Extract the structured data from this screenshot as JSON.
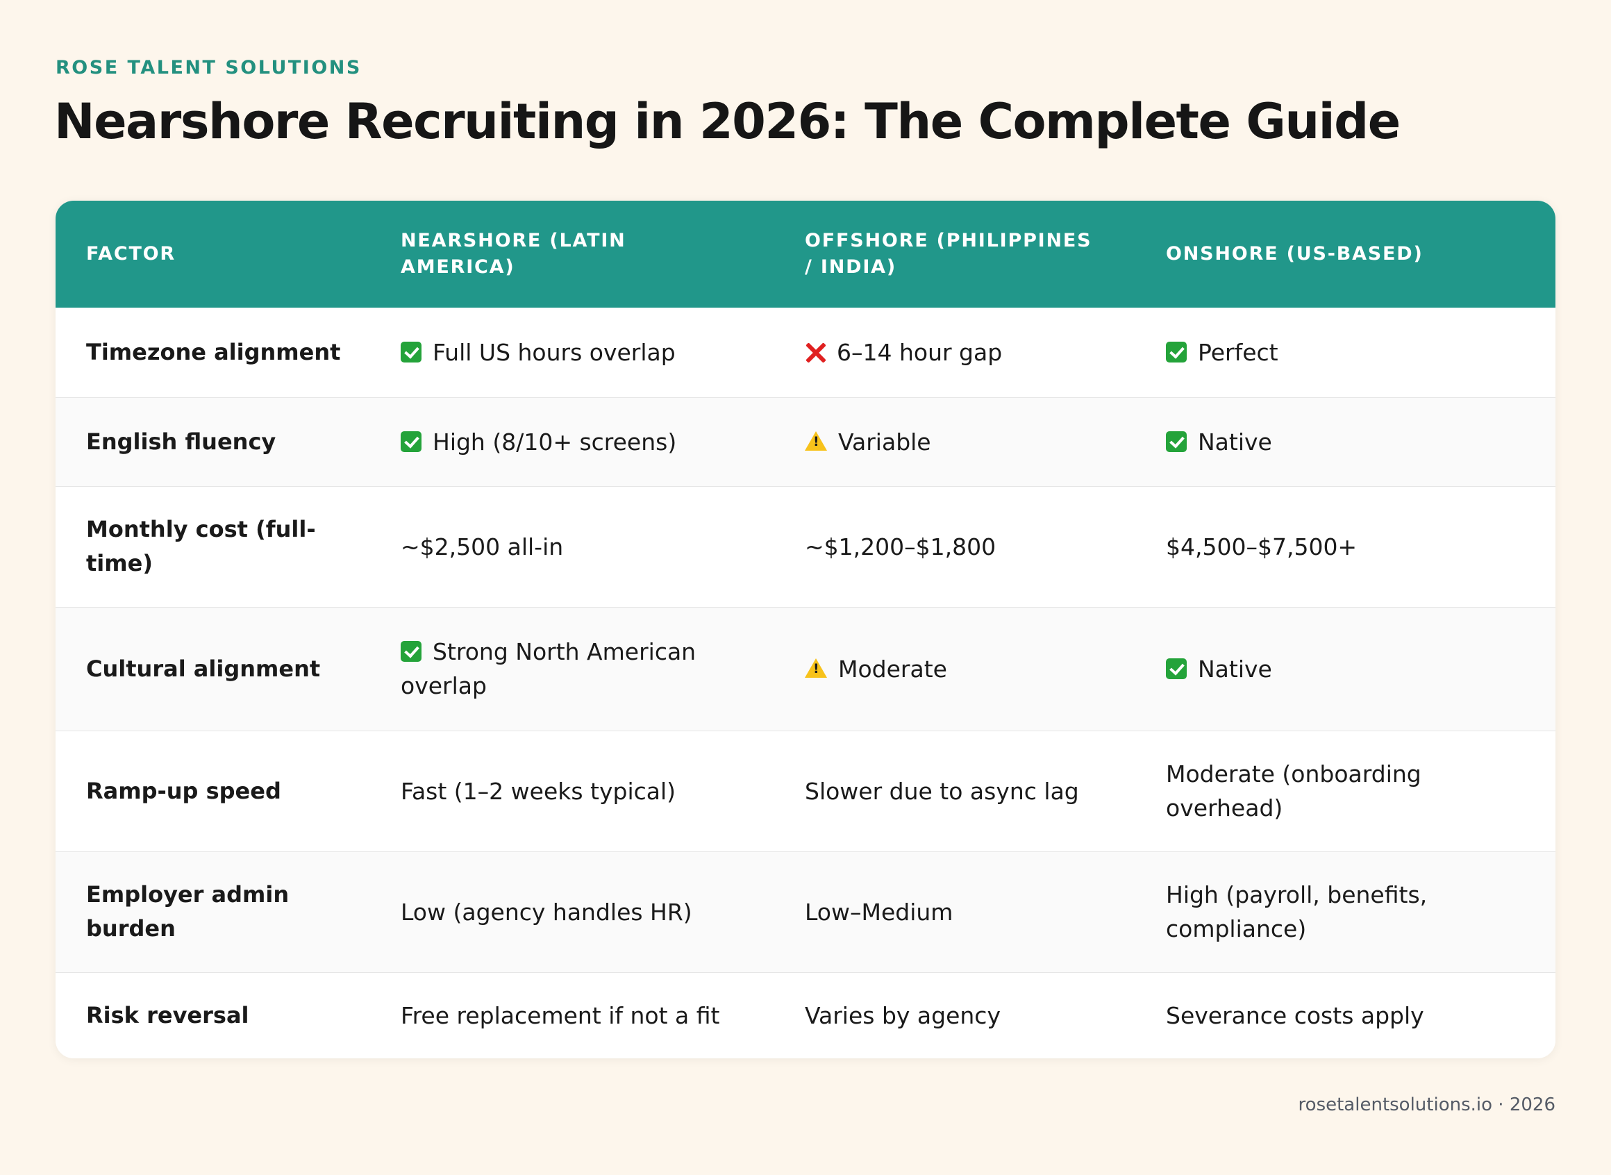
{
  "brand": "ROSE TALENT SOLUTIONS",
  "title": "Nearshore Recruiting in 2026: The Complete Guide",
  "table": {
    "headers": [
      "FACTOR",
      "NEARSHORE (LATIN AMERICA)",
      "OFFSHORE (PHILIPPINES / INDIA)",
      "ONSHORE (US-BASED)"
    ],
    "rows": [
      {
        "factor": "Timezone alignment",
        "nearshore": {
          "icon": "check-icon",
          "text": "Full US hours overlap"
        },
        "offshore": {
          "icon": "cross-icon",
          "text": "6–14 hour gap"
        },
        "onshore": {
          "icon": "check-icon",
          "text": "Perfect"
        }
      },
      {
        "factor": "English fluency",
        "nearshore": {
          "icon": "check-icon",
          "text": "High (8/10+ screens)"
        },
        "offshore": {
          "icon": "warning-icon",
          "text": "Variable"
        },
        "onshore": {
          "icon": "check-icon",
          "text": "Native"
        }
      },
      {
        "factor": "Monthly cost (full-time)",
        "nearshore": {
          "icon": "",
          "text": "~$2,500 all-in"
        },
        "offshore": {
          "icon": "",
          "text": "~$1,200–$1,800"
        },
        "onshore": {
          "icon": "",
          "text": "$4,500–$7,500+"
        }
      },
      {
        "factor": "Cultural alignment",
        "nearshore": {
          "icon": "check-icon",
          "text": "Strong North American overlap"
        },
        "offshore": {
          "icon": "warning-icon",
          "text": "Moderate"
        },
        "onshore": {
          "icon": "check-icon",
          "text": "Native"
        }
      },
      {
        "factor": "Ramp-up speed",
        "nearshore": {
          "icon": "",
          "text": "Fast (1–2 weeks typical)"
        },
        "offshore": {
          "icon": "",
          "text": "Slower due to async lag"
        },
        "onshore": {
          "icon": "",
          "text": "Moderate (onboarding overhead)"
        }
      },
      {
        "factor": "Employer admin burden",
        "nearshore": {
          "icon": "",
          "text": "Low (agency handles HR)"
        },
        "offshore": {
          "icon": "",
          "text": "Low–Medium"
        },
        "onshore": {
          "icon": "",
          "text": "High (payroll, benefits, compliance)"
        }
      },
      {
        "factor": "Risk reversal",
        "nearshore": {
          "icon": "",
          "text": "Free replacement if not a fit"
        },
        "offshore": {
          "icon": "",
          "text": "Varies by agency"
        },
        "onshore": {
          "icon": "",
          "text": "Severance costs apply"
        }
      }
    ]
  },
  "footer": "rosetalentsolutions.io · 2026",
  "colors": {
    "background": "#fdf6ec",
    "accent": "#21978a",
    "brand_text": "#23907f",
    "check": "#24a33a",
    "cross": "#e02020",
    "warning": "#f7c21b"
  }
}
